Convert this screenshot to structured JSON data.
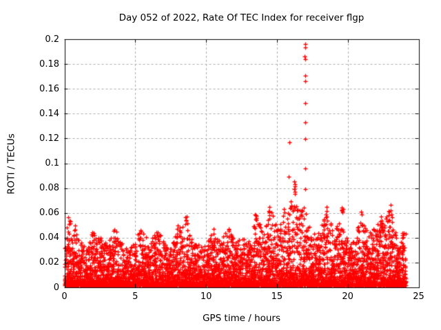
{
  "chart_data": {
    "type": "scatter",
    "title": "Day 052 of 2022, Rate Of TEC Index for receiver flgp",
    "xlabel": "GPS time / hours",
    "ylabel": "ROTI / TECUs",
    "xlim": [
      0,
      25
    ],
    "ylim": [
      0,
      0.2
    ],
    "xticks": [
      "0",
      "5",
      "10",
      "15",
      "20",
      "25"
    ],
    "yticks": [
      "0",
      "0.02",
      "0.04",
      "0.06",
      "0.08",
      "0.1",
      "0.12",
      "0.14",
      "0.16",
      "0.18",
      "0.2"
    ],
    "grid": true,
    "legend": "none",
    "marker": {
      "shape": "plus",
      "color": "#ff0000",
      "size": 7
    },
    "colors": {
      "marker": "#ff0000",
      "grid": "#aaaaaa",
      "border": "#000000",
      "text": "#000000"
    },
    "data_time_range_hours": [
      0,
      24.1
    ],
    "band_envelope": {
      "comment": "max ROTI of the dense scatter band, sampled every 0.5 h from 0 to 24 h",
      "t_step": 0.5,
      "max": [
        0.04,
        0.057,
        0.04,
        0.032,
        0.046,
        0.042,
        0.034,
        0.05,
        0.037,
        0.029,
        0.04,
        0.052,
        0.034,
        0.049,
        0.037,
        0.033,
        0.05,
        0.057,
        0.04,
        0.033,
        0.035,
        0.048,
        0.036,
        0.05,
        0.036,
        0.041,
        0.038,
        0.058,
        0.044,
        0.064,
        0.052,
        0.063,
        0.068,
        0.065,
        0.06,
        0.042,
        0.047,
        0.063,
        0.044,
        0.06,
        0.037,
        0.043,
        0.058,
        0.045,
        0.05,
        0.056,
        0.064,
        0.037,
        0.045
      ]
    },
    "band_generator": {
      "comment": "dense low-level band: points between y_min and envelope, concentrated near bottom",
      "seed": 20220052,
      "bin_width_hours": 0.05,
      "points_per_bin": 13,
      "y_min": 0.0015,
      "power": 3
    },
    "peak_points": [
      [
        16.98,
        0.196
      ],
      [
        16.98,
        0.1935
      ],
      [
        16.97,
        0.186
      ],
      [
        16.98,
        0.1838
      ],
      [
        16.98,
        0.1705
      ],
      [
        16.98,
        0.166
      ],
      [
        16.98,
        0.1485
      ],
      [
        16.98,
        0.1328
      ],
      [
        17.0,
        0.1198
      ],
      [
        15.87,
        0.117
      ],
      [
        17.0,
        0.0958
      ],
      [
        15.85,
        0.0894
      ],
      [
        16.22,
        0.0852
      ],
      [
        16.25,
        0.0832
      ],
      [
        16.28,
        0.0812
      ],
      [
        16.24,
        0.0792
      ],
      [
        16.27,
        0.0772
      ],
      [
        16.25,
        0.0752
      ],
      [
        17.0,
        0.0792
      ],
      [
        16.9,
        0.0644
      ],
      [
        0.25,
        0.0565
      ],
      [
        0.35,
        0.054
      ],
      [
        0.3,
        0.051
      ],
      [
        0.15,
        0.048
      ],
      [
        8.62,
        0.057
      ],
      [
        8.58,
        0.054
      ],
      [
        8.66,
        0.0515
      ],
      [
        13.45,
        0.0585
      ],
      [
        13.48,
        0.055
      ],
      [
        14.45,
        0.065
      ],
      [
        14.42,
        0.0615
      ],
      [
        14.48,
        0.058
      ],
      [
        15.5,
        0.063
      ],
      [
        15.55,
        0.0605
      ],
      [
        16.0,
        0.0695
      ],
      [
        16.05,
        0.066
      ],
      [
        15.95,
        0.0635
      ],
      [
        16.1,
        0.0615
      ],
      [
        16.35,
        0.0655
      ],
      [
        16.4,
        0.062
      ],
      [
        18.5,
        0.065
      ],
      [
        18.52,
        0.0615
      ],
      [
        18.47,
        0.0585
      ],
      [
        19.58,
        0.064
      ],
      [
        19.6,
        0.0625
      ],
      [
        19.63,
        0.0615
      ],
      [
        19.62,
        0.0605
      ],
      [
        19.65,
        0.063
      ],
      [
        19.6,
        0.0618
      ],
      [
        20.95,
        0.061
      ],
      [
        20.97,
        0.0585
      ],
      [
        22.35,
        0.057
      ],
      [
        22.38,
        0.054
      ],
      [
        22.4,
        0.051
      ],
      [
        23.03,
        0.0665
      ],
      [
        23.05,
        0.062
      ],
      [
        23.06,
        0.0585
      ],
      [
        23.88,
        0.0435
      ],
      [
        23.92,
        0.042
      ],
      [
        23.9,
        0.0405
      ],
      [
        23.95,
        0.044
      ],
      [
        23.85,
        0.04
      ]
    ]
  }
}
